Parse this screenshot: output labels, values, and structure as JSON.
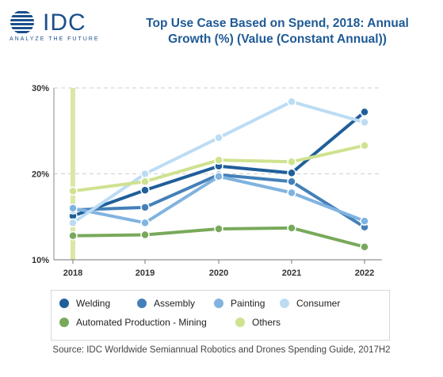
{
  "header": {
    "logo_text": "IDC",
    "logo_tagline": "ANALYZE THE FUTURE",
    "title_line1": "Top Use Case Based on Spend, 2018: Annual",
    "title_line2": "Growth (%) (Value (Constant Annual))"
  },
  "source": "Source: IDC Worldwide Semiannual Robotics and Drones Spending Guide, 2017H2",
  "chart_data": {
    "type": "line",
    "categories": [
      "2018",
      "2019",
      "2020",
      "2021",
      "2022"
    ],
    "ylim": [
      10,
      30
    ],
    "yticks": [
      10,
      20,
      30
    ],
    "ytick_labels": [
      "10%",
      "20%",
      "30%"
    ],
    "grid": true,
    "legend_position": "bottom",
    "series": [
      {
        "name": "Welding",
        "color": "#1f5f9a",
        "values": [
          15.1,
          18.1,
          20.9,
          20.1,
          27.2
        ]
      },
      {
        "name": "Assembly",
        "color": "#4480b8",
        "values": [
          15.8,
          16.1,
          19.9,
          19.1,
          13.8
        ]
      },
      {
        "name": "Painting",
        "color": "#80b3e0",
        "values": [
          16.0,
          14.3,
          19.7,
          17.8,
          14.5
        ]
      },
      {
        "name": "Consumer",
        "color": "#bcdcf4",
        "values": [
          14.3,
          20.0,
          24.2,
          28.4,
          26.0
        ]
      },
      {
        "name": "Automated Production - Mining",
        "color": "#78a95a",
        "values": [
          12.8,
          12.9,
          13.6,
          13.7,
          11.5
        ]
      },
      {
        "name": "Others",
        "color": "#cfe28f",
        "values": [
          18.0,
          19.1,
          21.6,
          21.4,
          23.3
        ]
      }
    ]
  }
}
